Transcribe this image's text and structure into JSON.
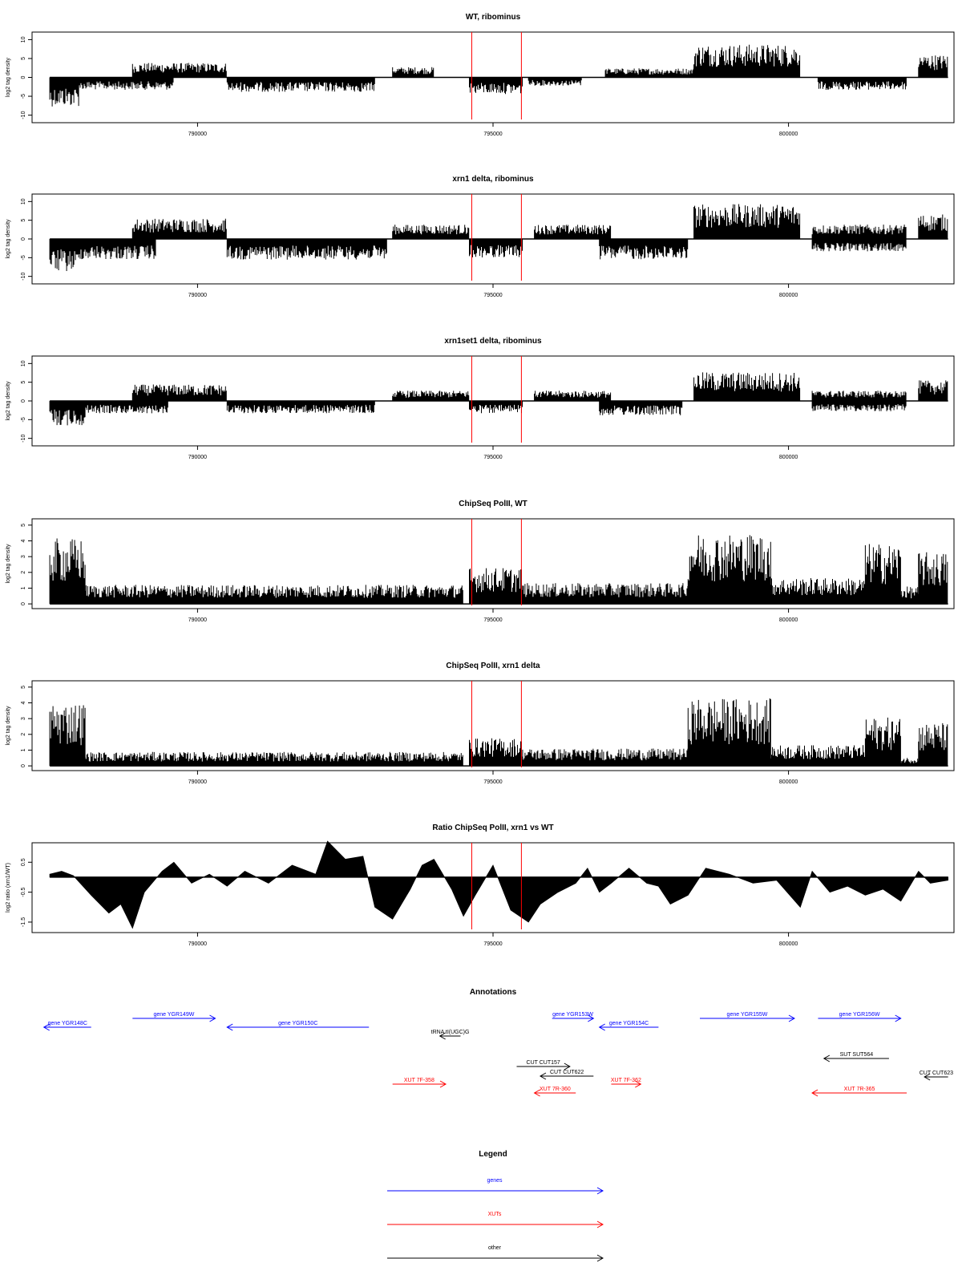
{
  "colors": {
    "gene": "#0000ff",
    "xut": "#ff0000",
    "other": "#000000",
    "marker": "#ff0000",
    "fill": "#000000"
  },
  "x_axis": {
    "xlim": [
      787200,
      802800
    ],
    "ticks": [
      790000,
      795000,
      800000
    ],
    "tick_labels": [
      "790000",
      "795000",
      "800000"
    ]
  },
  "markers": [
    794640,
    795480
  ],
  "chart_data": [
    {
      "type": "area",
      "title": "WT, ribominus",
      "ylabel": "log2 tag density",
      "ylim": [
        -12,
        12
      ],
      "yticks": [
        -10,
        -5,
        0,
        5,
        10
      ],
      "ytick_labels": [
        "-10",
        "-5",
        "0",
        "5",
        "10"
      ],
      "segments": [
        {
          "x0": 787500,
          "x1": 788000,
          "y": -7
        },
        {
          "x0": 788000,
          "x1": 789600,
          "y": -3
        },
        {
          "x0": 788900,
          "x1": 790500,
          "y": 3.5
        },
        {
          "x0": 790500,
          "x1": 793000,
          "y": -3.5
        },
        {
          "x0": 793300,
          "x1": 794000,
          "y": 2.5
        },
        {
          "x0": 794600,
          "x1": 795500,
          "y": -4
        },
        {
          "x0": 795600,
          "x1": 796500,
          "y": -2
        },
        {
          "x0": 796900,
          "x1": 798400,
          "y": 2.2
        },
        {
          "x0": 798400,
          "x1": 800200,
          "y": 8
        },
        {
          "x0": 800500,
          "x1": 802000,
          "y": -3
        },
        {
          "x0": 802200,
          "x1": 802700,
          "y": 5.5
        }
      ]
    },
    {
      "type": "area",
      "title": "xrn1 delta, ribominus",
      "ylabel": "log2 tag density",
      "ylim": [
        -12,
        12
      ],
      "yticks": [
        -10,
        -5,
        0,
        5,
        10
      ],
      "ytick_labels": [
        "-10",
        "-5",
        "0",
        "5",
        "10"
      ],
      "segments": [
        {
          "x0": 787500,
          "x1": 788000,
          "y": -8
        },
        {
          "x0": 788000,
          "x1": 789300,
          "y": -5
        },
        {
          "x0": 788900,
          "x1": 790500,
          "y": 5
        },
        {
          "x0": 790500,
          "x1": 793200,
          "y": -5
        },
        {
          "x0": 793300,
          "x1": 794600,
          "y": 3.5
        },
        {
          "x0": 794600,
          "x1": 795500,
          "y": -4.5
        },
        {
          "x0": 795700,
          "x1": 797000,
          "y": 3.5
        },
        {
          "x0": 796800,
          "x1": 798300,
          "y": -5
        },
        {
          "x0": 798400,
          "x1": 800200,
          "y": 8.5
        },
        {
          "x0": 800400,
          "x1": 802000,
          "y": 3.5
        },
        {
          "x0": 800400,
          "x1": 802000,
          "y": -3
        },
        {
          "x0": 802200,
          "x1": 802700,
          "y": 6
        }
      ]
    },
    {
      "type": "area",
      "title": "xrn1set1 delta, ribominus",
      "ylabel": "log2 tag density",
      "ylim": [
        -12,
        12
      ],
      "yticks": [
        -10,
        -5,
        0,
        5,
        10
      ],
      "ytick_labels": [
        "-10",
        "-5",
        "0",
        "5",
        "10"
      ],
      "segments": [
        {
          "x0": 787500,
          "x1": 788100,
          "y": -6
        },
        {
          "x0": 788100,
          "x1": 789500,
          "y": -3
        },
        {
          "x0": 788900,
          "x1": 790500,
          "y": 4
        },
        {
          "x0": 790500,
          "x1": 793000,
          "y": -3
        },
        {
          "x0": 793300,
          "x1": 794600,
          "y": 2.5
        },
        {
          "x0": 794600,
          "x1": 795500,
          "y": -3
        },
        {
          "x0": 795700,
          "x1": 797000,
          "y": 2.5
        },
        {
          "x0": 796800,
          "x1": 798200,
          "y": -3.5
        },
        {
          "x0": 798400,
          "x1": 800200,
          "y": 7
        },
        {
          "x0": 800400,
          "x1": 802000,
          "y": 2.5
        },
        {
          "x0": 800400,
          "x1": 802000,
          "y": -2.5
        },
        {
          "x0": 802200,
          "x1": 802700,
          "y": 5
        }
      ]
    },
    {
      "type": "area",
      "title": "ChipSeq PolII, WT",
      "ylabel": "log2 tag density",
      "ylim": [
        -0.3,
        5.4
      ],
      "yticks": [
        0,
        1,
        2,
        3,
        4,
        5
      ],
      "ytick_labels": [
        "0",
        "1",
        "2",
        "3",
        "4",
        "5"
      ],
      "segments": [
        {
          "x0": 787500,
          "x1": 788100,
          "y": 3.8
        },
        {
          "x0": 788100,
          "x1": 794500,
          "y": 1.1
        },
        {
          "x0": 794600,
          "x1": 795500,
          "y": 2.1
        },
        {
          "x0": 795500,
          "x1": 798300,
          "y": 1.2
        },
        {
          "x0": 798300,
          "x1": 799700,
          "y": 4.1
        },
        {
          "x0": 799700,
          "x1": 801300,
          "y": 1.5
        },
        {
          "x0": 801300,
          "x1": 801900,
          "y": 3.5
        },
        {
          "x0": 801900,
          "x1": 802200,
          "y": 1
        },
        {
          "x0": 802200,
          "x1": 802700,
          "y": 3
        }
      ]
    },
    {
      "type": "area",
      "title": "ChipSeq PolII, xrn1 delta",
      "ylabel": "log2 tag density",
      "ylim": [
        -0.3,
        5.4
      ],
      "yticks": [
        0,
        1,
        2,
        3,
        4,
        5
      ],
      "ytick_labels": [
        "0",
        "1",
        "2",
        "3",
        "4",
        "5"
      ],
      "segments": [
        {
          "x0": 787500,
          "x1": 788100,
          "y": 3.7
        },
        {
          "x0": 788100,
          "x1": 794500,
          "y": 0.8
        },
        {
          "x0": 794600,
          "x1": 795500,
          "y": 1.6
        },
        {
          "x0": 795500,
          "x1": 798300,
          "y": 1
        },
        {
          "x0": 798300,
          "x1": 799700,
          "y": 3.9
        },
        {
          "x0": 799700,
          "x1": 801300,
          "y": 1.2
        },
        {
          "x0": 801300,
          "x1": 801900,
          "y": 2.8
        },
        {
          "x0": 801900,
          "x1": 802200,
          "y": 0.5
        },
        {
          "x0": 802200,
          "x1": 802700,
          "y": 2.5
        }
      ]
    },
    {
      "type": "area",
      "title": "Ratio ChipSeq PolII, xrn1 vs WT",
      "ylabel": "log2 ratio (xrn1/WT)",
      "ylim": [
        -1.85,
        1.15
      ],
      "yticks": [
        -1.5,
        -0.5,
        0.5
      ],
      "ytick_labels": [
        "-1.5",
        "-0.5",
        "0.5"
      ],
      "x": [
        787500,
        787700,
        787900,
        788200,
        788500,
        788700,
        788900,
        789100,
        789400,
        789600,
        789900,
        790200,
        790500,
        790800,
        791200,
        791600,
        792000,
        792200,
        792500,
        792800,
        793000,
        793300,
        793600,
        793800,
        794000,
        794300,
        794500,
        794700,
        795000,
        795300,
        795600,
        795800,
        796100,
        796400,
        796600,
        796800,
        797000,
        797300,
        797600,
        797800,
        798000,
        798300,
        798600,
        799000,
        799400,
        799800,
        800200,
        800400,
        800700,
        801000,
        801300,
        801600,
        801900,
        802200,
        802400,
        802700
      ],
      "y": [
        0.1,
        0.2,
        0.05,
        -0.6,
        -1.2,
        -0.9,
        -1.7,
        -0.5,
        0.2,
        0.5,
        -0.2,
        0.1,
        -0.3,
        0.2,
        -0.2,
        0.4,
        0.1,
        1.2,
        0.6,
        0.7,
        -1.0,
        -1.4,
        -0.4,
        0.4,
        0.6,
        -0.4,
        -1.3,
        -0.6,
        0.4,
        -1.1,
        -1.5,
        -0.9,
        -0.5,
        -0.2,
        0.3,
        -0.5,
        -0.2,
        0.3,
        -0.2,
        -0.3,
        -0.9,
        -0.6,
        0.3,
        0.1,
        -0.2,
        -0.1,
        -1.0,
        0.2,
        -0.5,
        -0.3,
        -0.6,
        -0.4,
        -0.8,
        0.2,
        -0.2,
        -0.1
      ]
    }
  ],
  "annotations": {
    "title": "Annotations",
    "items": [
      {
        "label": "gene YGR148C",
        "kind": "gene",
        "x0": 787400,
        "x1": 788200,
        "row": 1,
        "dir": "left"
      },
      {
        "label": "gene YGR149W",
        "kind": "gene",
        "x0": 788900,
        "x1": 790300,
        "row": 0,
        "dir": "right"
      },
      {
        "label": "gene YGR150C",
        "kind": "gene",
        "x0": 790500,
        "x1": 792900,
        "row": 1,
        "dir": "left"
      },
      {
        "label": "gene YGR153W",
        "kind": "gene",
        "x0": 796000,
        "x1": 796700,
        "row": 0,
        "dir": "right"
      },
      {
        "label": "gene YGR154C",
        "kind": "gene",
        "x0": 796800,
        "x1": 797800,
        "row": 1,
        "dir": "left"
      },
      {
        "label": "gene YGR155W",
        "kind": "gene",
        "x0": 798500,
        "x1": 800100,
        "row": 0,
        "dir": "right"
      },
      {
        "label": "gene YGR156W",
        "kind": "gene",
        "x0": 800500,
        "x1": 801900,
        "row": 0,
        "dir": "right"
      },
      {
        "label": "tRNA tI(UGC)G",
        "kind": "other",
        "x0": 794100,
        "x1": 794450,
        "row": 2,
        "dir": "left"
      },
      {
        "label": "CUT CUT157",
        "kind": "other",
        "x0": 795400,
        "x1": 796300,
        "row": 3,
        "dir": "right"
      },
      {
        "label": "CUT CUT622",
        "kind": "other",
        "x0": 795800,
        "x1": 796700,
        "row": 4,
        "dir": "left"
      },
      {
        "label": "SUT SUT564",
        "kind": "other",
        "x0": 800600,
        "x1": 801700,
        "row": 5,
        "dir": "left"
      },
      {
        "label": "CUT CUT623",
        "kind": "other",
        "x0": 802300,
        "x1": 802700,
        "row": 6,
        "dir": "left"
      },
      {
        "label": "XUT 7F-358",
        "kind": "xut",
        "x0": 793300,
        "x1": 794200,
        "row": 7,
        "dir": "right"
      },
      {
        "label": "XUT 7R-360",
        "kind": "xut",
        "x0": 795700,
        "x1": 796400,
        "row": 8,
        "dir": "left"
      },
      {
        "label": "XUT 7F-362",
        "kind": "xut",
        "x0": 797000,
        "x1": 797500,
        "row": 7,
        "dir": "right"
      },
      {
        "label": "XUT 7R-365",
        "kind": "xut",
        "x0": 800400,
        "x1": 802000,
        "row": 8,
        "dir": "left"
      }
    ]
  },
  "legend": {
    "title": "Legend",
    "entries": [
      {
        "label": "genes",
        "kind": "gene"
      },
      {
        "label": "XUTs",
        "kind": "xut"
      },
      {
        "label": "other",
        "kind": "other"
      }
    ]
  }
}
